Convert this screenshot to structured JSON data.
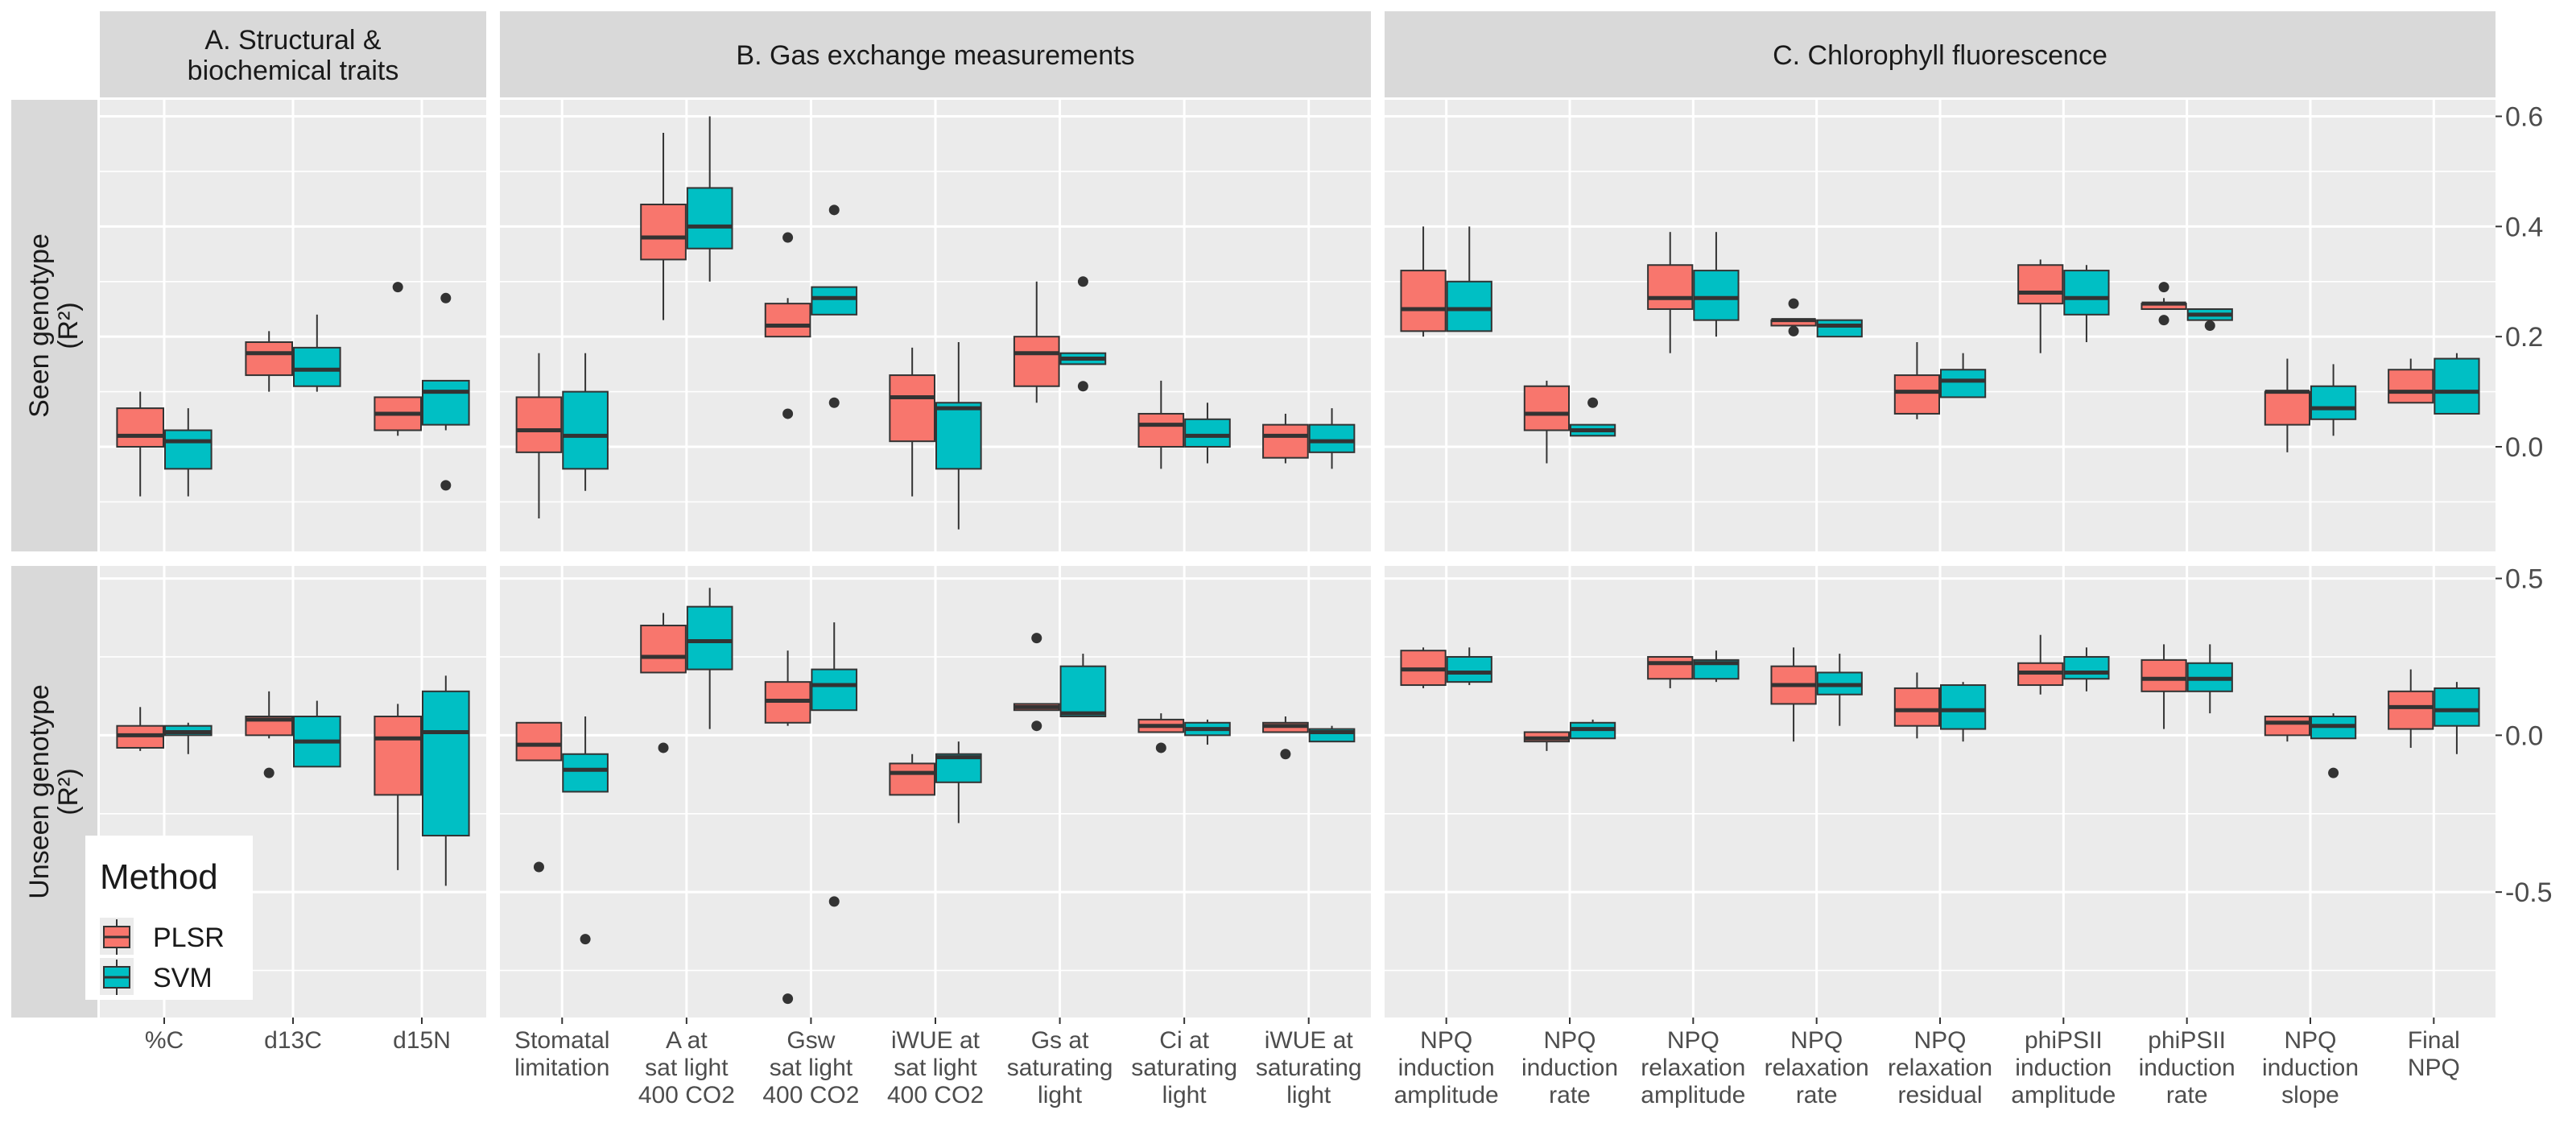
{
  "chart_data": {
    "type": "boxplot",
    "facet_columns": [
      {
        "title": "A. Structural &\nbiochemical traits",
        "categories": [
          "%C",
          "d13C",
          "d15N"
        ]
      },
      {
        "title": "B. Gas exchange measurements",
        "categories": [
          "Stomatal\nlimitation",
          "A at\nsat light\n400 CO2",
          "Gsw\nsat light\n400 CO2",
          "iWUE at\nsat light\n400 CO2",
          "Gs at\nsaturating\nlight",
          "Ci at\nsaturating\nlight",
          "iWUE at\nsaturating\nlight"
        ]
      },
      {
        "title": "C. Chlorophyll fluorescence",
        "categories": [
          "NPQ\ninduction\namplitude",
          "NPQ\ninduction\nrate",
          "NPQ\nrelaxation\namplitude",
          "NPQ\nrelaxation\nrate",
          "NPQ\nrelaxation\nresidual",
          "phiPSII\ninduction\namplitude",
          "phiPSII\ninduction\nrate",
          "NPQ\ninduction\nslope",
          "Final\nNPQ"
        ]
      }
    ],
    "facet_rows": [
      {
        "title": "Seen genotype\n(R²)",
        "ylim": [
          -0.19,
          0.63
        ],
        "ticks": [
          0.0,
          0.2,
          0.4,
          0.6
        ],
        "tick_labels": [
          "0.0",
          "0.2",
          "0.4",
          "0.6"
        ]
      },
      {
        "title": "Unseen genotype\n(R²)",
        "ylim": [
          -0.9,
          0.54
        ],
        "ticks": [
          -0.5,
          0.0,
          0.5
        ],
        "tick_labels": [
          "-0.5",
          "0.0",
          "0.5"
        ]
      }
    ],
    "legend": {
      "title": "Method",
      "position": "bottom-left",
      "entries": [
        "PLSR",
        "SVM"
      ]
    },
    "series_colors": {
      "PLSR": "#F8766D",
      "SVM": "#00BFC4"
    },
    "series": [
      {
        "name": "PLSR",
        "rows": [
          [
            [
              [
                -0.09,
                0.0,
                0.02,
                0.07,
                0.1
              ]
            ],
            [
              [
                0.1,
                0.13,
                0.17,
                0.19,
                0.21
              ]
            ],
            [
              [
                0.02,
                0.03,
                0.06,
                0.09,
                0.09
              ],
              [
                0.29
              ]
            ]
          ],
          [
            [
              [
                -0.13,
                -0.01,
                0.03,
                0.09,
                0.17
              ]
            ],
            [
              [
                0.23,
                0.34,
                0.38,
                0.44,
                0.57
              ]
            ],
            [
              [
                0.2,
                0.2,
                0.22,
                0.26,
                0.27
              ],
              [
                0.38,
                0.06
              ]
            ],
            [
              [
                -0.09,
                0.01,
                0.09,
                0.13,
                0.18
              ]
            ],
            [
              [
                0.08,
                0.11,
                0.17,
                0.2,
                0.3
              ]
            ],
            [
              [
                -0.04,
                0.0,
                0.04,
                0.06,
                0.12
              ]
            ],
            [
              [
                -0.03,
                -0.02,
                0.02,
                0.04,
                0.06
              ]
            ]
          ],
          [
            [
              [
                0.2,
                0.21,
                0.25,
                0.32,
                0.4
              ]
            ],
            [
              [
                -0.03,
                0.03,
                0.06,
                0.11,
                0.12
              ]
            ],
            [
              [
                0.17,
                0.25,
                0.27,
                0.33,
                0.39
              ]
            ],
            [
              [
                0.22,
                0.22,
                0.23,
                0.23,
                0.23
              ],
              [
                0.26,
                0.21
              ]
            ],
            [
              [
                0.05,
                0.06,
                0.1,
                0.13,
                0.19
              ]
            ],
            [
              [
                0.17,
                0.26,
                0.28,
                0.33,
                0.34
              ]
            ],
            [
              [
                0.25,
                0.25,
                0.26,
                0.26,
                0.27
              ],
              [
                0.29,
                0.23
              ]
            ],
            [
              [
                -0.01,
                0.04,
                0.1,
                0.1,
                0.16
              ]
            ],
            [
              [
                0.08,
                0.08,
                0.1,
                0.14,
                0.16
              ]
            ]
          ]
        ]
      },
      {
        "name": "SVM",
        "rows": [
          [
            [
              [
                -0.09,
                -0.04,
                0.01,
                0.03,
                0.07
              ]
            ],
            [
              [
                0.1,
                0.11,
                0.14,
                0.18,
                0.24
              ]
            ],
            [
              [
                0.03,
                0.04,
                0.1,
                0.12,
                0.12
              ],
              [
                0.27,
                -0.07
              ]
            ]
          ],
          [
            [
              [
                -0.08,
                -0.04,
                0.02,
                0.1,
                0.17
              ]
            ],
            [
              [
                0.3,
                0.36,
                0.4,
                0.47,
                0.6
              ]
            ],
            [
              [
                0.24,
                0.24,
                0.27,
                0.29,
                0.29
              ],
              [
                0.43,
                0.08
              ]
            ],
            [
              [
                -0.15,
                -0.04,
                0.07,
                0.08,
                0.19
              ]
            ],
            [
              [
                0.15,
                0.15,
                0.16,
                0.17,
                0.17
              ],
              [
                0.3,
                0.11
              ]
            ],
            [
              [
                -0.03,
                0.0,
                0.02,
                0.05,
                0.08
              ]
            ],
            [
              [
                -0.04,
                -0.01,
                0.01,
                0.04,
                0.07
              ]
            ]
          ],
          [
            [
              [
                0.21,
                0.21,
                0.25,
                0.3,
                0.4
              ]
            ],
            [
              [
                0.02,
                0.02,
                0.03,
                0.04,
                0.04
              ],
              [
                0.08
              ]
            ],
            [
              [
                0.2,
                0.23,
                0.27,
                0.32,
                0.39
              ]
            ],
            [
              [
                0.2,
                0.2,
                0.22,
                0.23,
                0.23
              ]
            ],
            [
              [
                0.09,
                0.09,
                0.12,
                0.14,
                0.17
              ]
            ],
            [
              [
                0.19,
                0.24,
                0.27,
                0.32,
                0.33
              ]
            ],
            [
              [
                0.23,
                0.23,
                0.24,
                0.25,
                0.25
              ],
              [
                0.22
              ]
            ],
            [
              [
                0.02,
                0.05,
                0.07,
                0.11,
                0.15
              ]
            ],
            [
              [
                0.06,
                0.06,
                0.1,
                0.16,
                0.17
              ]
            ]
          ]
        ]
      },
      {
        "name": "PLSR",
        "rows": [
          [
            [
              [
                -0.05,
                -0.04,
                0.0,
                0.03,
                0.09
              ]
            ],
            [
              [
                -0.01,
                0.0,
                0.05,
                0.06,
                0.14
              ],
              [
                -0.12
              ]
            ],
            [
              [
                -0.43,
                -0.19,
                -0.01,
                0.06,
                0.1
              ]
            ]
          ],
          [
            [
              [
                -0.08,
                -0.08,
                -0.03,
                0.04,
                0.04
              ],
              [
                -0.42
              ]
            ],
            [
              [
                0.2,
                0.2,
                0.25,
                0.35,
                0.39
              ],
              [
                -0.04
              ]
            ],
            [
              [
                0.03,
                0.04,
                0.11,
                0.17,
                0.27
              ],
              [
                -0.84
              ]
            ],
            [
              [
                -0.19,
                -0.19,
                -0.12,
                -0.09,
                -0.06
              ]
            ],
            [
              [
                0.08,
                0.08,
                0.09,
                0.1,
                0.1
              ],
              [
                0.31,
                0.03
              ]
            ],
            [
              [
                0.01,
                0.01,
                0.03,
                0.05,
                0.07
              ],
              [
                -0.04
              ]
            ],
            [
              [
                0.01,
                0.01,
                0.03,
                0.04,
                0.06
              ],
              [
                -0.06
              ]
            ]
          ],
          [
            [
              [
                0.15,
                0.16,
                0.21,
                0.27,
                0.28
              ]
            ],
            [
              [
                -0.05,
                -0.02,
                -0.01,
                0.01,
                0.01
              ]
            ],
            [
              [
                0.15,
                0.18,
                0.23,
                0.25,
                0.25
              ]
            ],
            [
              [
                -0.02,
                0.1,
                0.16,
                0.22,
                0.28
              ]
            ],
            [
              [
                -0.01,
                0.03,
                0.08,
                0.15,
                0.2
              ]
            ],
            [
              [
                0.13,
                0.16,
                0.2,
                0.23,
                0.32
              ]
            ],
            [
              [
                0.02,
                0.14,
                0.18,
                0.24,
                0.29
              ]
            ],
            [
              [
                -0.02,
                0.0,
                0.04,
                0.06,
                0.06
              ]
            ],
            [
              [
                -0.04,
                0.02,
                0.09,
                0.14,
                0.21
              ]
            ]
          ]
        ]
      },
      {
        "name": "SVM",
        "rows": [
          [
            [
              [
                -0.06,
                0.0,
                0.01,
                0.03,
                0.04
              ]
            ],
            [
              [
                -0.1,
                -0.1,
                -0.02,
                0.06,
                0.11
              ]
            ],
            [
              [
                -0.48,
                -0.32,
                0.01,
                0.14,
                0.19
              ]
            ]
          ],
          [
            [
              [
                -0.18,
                -0.18,
                -0.11,
                -0.06,
                0.06
              ],
              [
                -0.65
              ]
            ],
            [
              [
                0.02,
                0.21,
                0.3,
                0.41,
                0.47
              ]
            ],
            [
              [
                0.08,
                0.08,
                0.16,
                0.21,
                0.36
              ],
              [
                -0.53
              ]
            ],
            [
              [
                -0.28,
                -0.15,
                -0.07,
                -0.06,
                -0.02
              ]
            ],
            [
              [
                0.06,
                0.06,
                0.07,
                0.22,
                0.26
              ]
            ],
            [
              [
                -0.03,
                0.0,
                0.02,
                0.04,
                0.05
              ]
            ],
            [
              [
                -0.02,
                -0.02,
                0.01,
                0.02,
                0.03
              ]
            ]
          ],
          [
            [
              [
                0.16,
                0.17,
                0.2,
                0.25,
                0.28
              ]
            ],
            [
              [
                -0.01,
                -0.01,
                0.02,
                0.04,
                0.05
              ]
            ],
            [
              [
                0.17,
                0.18,
                0.23,
                0.24,
                0.27
              ]
            ],
            [
              [
                0.03,
                0.13,
                0.16,
                0.2,
                0.26
              ]
            ],
            [
              [
                -0.02,
                0.02,
                0.08,
                0.16,
                0.17
              ]
            ],
            [
              [
                0.14,
                0.18,
                0.2,
                0.25,
                0.28
              ]
            ],
            [
              [
                0.07,
                0.14,
                0.18,
                0.23,
                0.29
              ]
            ],
            [
              [
                -0.01,
                -0.01,
                0.03,
                0.06,
                0.07
              ],
              [
                -0.12
              ]
            ],
            [
              [
                -0.06,
                0.03,
                0.08,
                0.15,
                0.17
              ]
            ]
          ]
        ]
      }
    ],
    "grid": true
  }
}
